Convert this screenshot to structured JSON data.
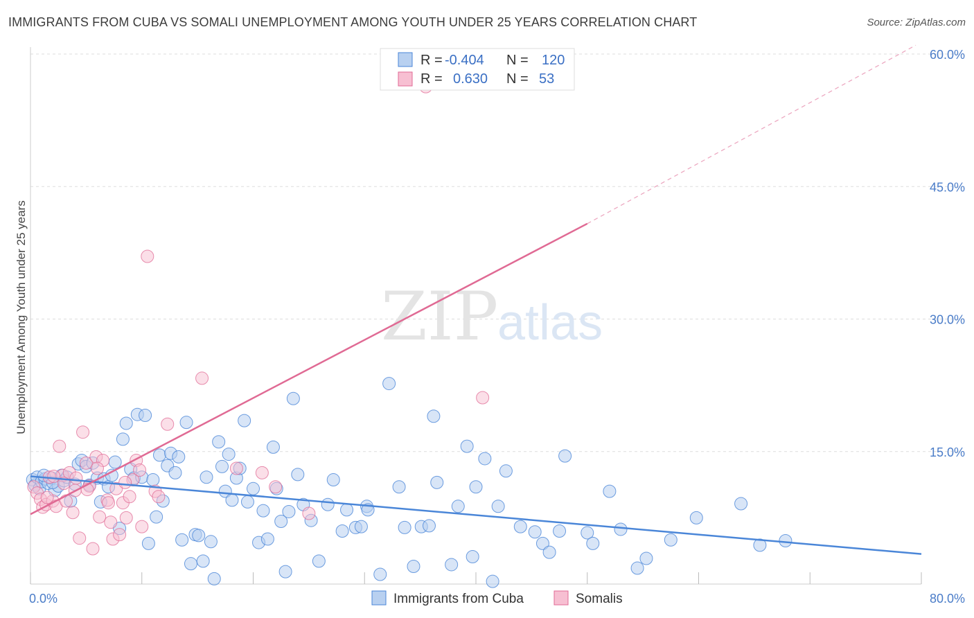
{
  "title": "IMMIGRANTS FROM CUBA VS SOMALI UNEMPLOYMENT AMONG YOUTH UNDER 25 YEARS CORRELATION CHART",
  "source": "Source: ZipAtlas.com",
  "watermark": {
    "zip": "ZIP",
    "atlas": "atlas"
  },
  "colors": {
    "cuba": "#4a86d8",
    "cuba_fill": "#b8d0f0",
    "somali": "#e06a94",
    "somali_fill": "#f7bfd2",
    "tick": "#4a7cc8",
    "grid": "#dddddd"
  },
  "stats": [
    {
      "r_label": "R =",
      "r": "-0.404",
      "n_label": "N =",
      "n": "120",
      "series": "cuba"
    },
    {
      "r_label": "R =",
      "r": "0.630",
      "n_label": "N =",
      "n": "53",
      "series": "somali"
    }
  ],
  "chart_data": {
    "type": "scatter",
    "ylabel": "Unemployment Among Youth under 25 years",
    "xlim": [
      0,
      80
    ],
    "ylim": [
      0,
      60
    ],
    "x_ticks": [
      "0.0%",
      "80.0%"
    ],
    "y_ticks": [
      {
        "value": 15,
        "label": "15.0%"
      },
      {
        "value": 30,
        "label": "30.0%"
      },
      {
        "value": 45,
        "label": "45.0%"
      },
      {
        "value": 60,
        "label": "60.0%"
      }
    ],
    "grid": true,
    "legend": [
      "Immigrants from Cuba",
      "Somalis"
    ],
    "series": [
      {
        "name": "Immigrants from Cuba",
        "trend": {
          "x": [
            0,
            80
          ],
          "y": [
            12.2,
            3.4
          ],
          "dashed_from": null
        },
        "points": [
          [
            0.2,
            11.8
          ],
          [
            0.4,
            11.2
          ],
          [
            0.6,
            12.1
          ],
          [
            0.8,
            10.8
          ],
          [
            1.0,
            11.6
          ],
          [
            1.3,
            11.9
          ],
          [
            1.6,
            11.4
          ],
          [
            1.9,
            12.0
          ],
          [
            2.2,
            10.6
          ],
          [
            2.5,
            11.1
          ],
          [
            2.8,
            12.3
          ],
          [
            3.0,
            11.7
          ],
          [
            3.3,
            12.1
          ],
          [
            3.6,
            9.4
          ],
          [
            4.0,
            11.3
          ],
          [
            4.3,
            13.6
          ],
          [
            4.6,
            14.0
          ],
          [
            5.0,
            13.3
          ],
          [
            5.3,
            11.2
          ],
          [
            5.6,
            13.7
          ],
          [
            6.0,
            12.0
          ],
          [
            6.3,
            9.3
          ],
          [
            6.6,
            11.9
          ],
          [
            7.0,
            11.0
          ],
          [
            7.3,
            12.3
          ],
          [
            7.6,
            13.8
          ],
          [
            8.0,
            6.3
          ],
          [
            8.3,
            16.4
          ],
          [
            8.6,
            18.2
          ],
          [
            9.0,
            13.0
          ],
          [
            9.3,
            12.0
          ],
          [
            9.6,
            19.2
          ],
          [
            10.0,
            12.1
          ],
          [
            10.3,
            19.1
          ],
          [
            10.6,
            4.6
          ],
          [
            11.0,
            11.8
          ],
          [
            11.3,
            7.6
          ],
          [
            11.6,
            14.6
          ],
          [
            11.9,
            9.4
          ],
          [
            12.3,
            13.4
          ],
          [
            12.6,
            14.8
          ],
          [
            13.0,
            12.6
          ],
          [
            13.3,
            14.4
          ],
          [
            13.6,
            5.0
          ],
          [
            14.0,
            18.3
          ],
          [
            14.4,
            2.3
          ],
          [
            14.8,
            5.6
          ],
          [
            15.1,
            5.5
          ],
          [
            15.5,
            2.6
          ],
          [
            15.8,
            12.1
          ],
          [
            16.2,
            4.8
          ],
          [
            16.5,
            0.6
          ],
          [
            16.9,
            16.1
          ],
          [
            17.2,
            13.3
          ],
          [
            17.5,
            10.5
          ],
          [
            17.8,
            14.7
          ],
          [
            18.1,
            9.5
          ],
          [
            18.5,
            12.0
          ],
          [
            18.8,
            13.1
          ],
          [
            19.2,
            18.5
          ],
          [
            19.5,
            9.3
          ],
          [
            20.0,
            10.8
          ],
          [
            20.5,
            4.7
          ],
          [
            20.9,
            8.3
          ],
          [
            21.3,
            5.1
          ],
          [
            21.8,
            15.5
          ],
          [
            22.1,
            10.8
          ],
          [
            22.5,
            7.1
          ],
          [
            22.9,
            1.4
          ],
          [
            23.2,
            8.2
          ],
          [
            23.6,
            21.0
          ],
          [
            24.0,
            12.4
          ],
          [
            24.5,
            9.0
          ],
          [
            25.2,
            7.2
          ],
          [
            25.9,
            2.6
          ],
          [
            26.7,
            9.0
          ],
          [
            27.2,
            11.8
          ],
          [
            28.0,
            6.0
          ],
          [
            28.4,
            8.4
          ],
          [
            29.2,
            6.4
          ],
          [
            29.7,
            6.5
          ],
          [
            30.2,
            8.8
          ],
          [
            30.3,
            8.4
          ],
          [
            31.4,
            1.1
          ],
          [
            32.2,
            22.7
          ],
          [
            33.1,
            11.0
          ],
          [
            33.6,
            6.4
          ],
          [
            34.4,
            2.0
          ],
          [
            35.1,
            6.5
          ],
          [
            35.8,
            6.6
          ],
          [
            36.2,
            19.0
          ],
          [
            36.5,
            11.5
          ],
          [
            37.8,
            2.2
          ],
          [
            38.4,
            8.8
          ],
          [
            39.2,
            15.6
          ],
          [
            39.7,
            3.1
          ],
          [
            40.0,
            11.0
          ],
          [
            40.8,
            14.2
          ],
          [
            41.5,
            0.3
          ],
          [
            42.0,
            8.8
          ],
          [
            42.7,
            12.8
          ],
          [
            44.0,
            6.5
          ],
          [
            45.3,
            5.9
          ],
          [
            46.0,
            4.6
          ],
          [
            46.6,
            3.6
          ],
          [
            47.5,
            6.0
          ],
          [
            48.0,
            14.5
          ],
          [
            50.0,
            5.8
          ],
          [
            50.5,
            4.6
          ],
          [
            52.0,
            10.5
          ],
          [
            53.0,
            6.2
          ],
          [
            54.5,
            1.8
          ],
          [
            55.3,
            2.9
          ],
          [
            57.5,
            5.0
          ],
          [
            59.8,
            7.5
          ],
          [
            63.8,
            9.1
          ],
          [
            65.5,
            4.4
          ],
          [
            67.8,
            4.9
          ],
          [
            1.2,
            12.3
          ],
          [
            2.0,
            11.5
          ]
        ]
      },
      {
        "name": "Somalis",
        "trend": {
          "x": [
            0,
            50
          ],
          "y": [
            7.9,
            40.8
          ],
          "dashed_to": [
            79.5,
            61.0
          ]
        },
        "points": [
          [
            0.3,
            11.0
          ],
          [
            0.6,
            10.3
          ],
          [
            0.9,
            9.6
          ],
          [
            1.1,
            8.7
          ],
          [
            1.4,
            9.0
          ],
          [
            1.7,
            12.1
          ],
          [
            2.0,
            9.4
          ],
          [
            2.3,
            8.8
          ],
          [
            2.6,
            15.6
          ],
          [
            2.9,
            12.3
          ],
          [
            3.2,
            9.4
          ],
          [
            3.5,
            12.6
          ],
          [
            3.8,
            8.1
          ],
          [
            4.1,
            12.0
          ],
          [
            4.4,
            5.2
          ],
          [
            4.7,
            17.2
          ],
          [
            5.0,
            13.7
          ],
          [
            5.3,
            11.1
          ],
          [
            5.6,
            4.0
          ],
          [
            5.9,
            14.4
          ],
          [
            6.2,
            7.6
          ],
          [
            6.5,
            14.0
          ],
          [
            6.9,
            9.5
          ],
          [
            7.2,
            7.0
          ],
          [
            7.4,
            5.1
          ],
          [
            7.7,
            10.8
          ],
          [
            8.0,
            5.6
          ],
          [
            8.3,
            9.2
          ],
          [
            8.6,
            7.5
          ],
          [
            8.9,
            9.9
          ],
          [
            9.2,
            11.8
          ],
          [
            9.5,
            14.0
          ],
          [
            10.0,
            6.5
          ],
          [
            10.5,
            37.1
          ],
          [
            11.2,
            10.5
          ],
          [
            12.3,
            18.1
          ],
          [
            15.4,
            23.3
          ],
          [
            18.5,
            13.1
          ],
          [
            20.8,
            12.6
          ],
          [
            22.0,
            11.0
          ],
          [
            25.0,
            8.0
          ],
          [
            35.5,
            56.3
          ],
          [
            40.6,
            21.1
          ],
          [
            1.5,
            9.8
          ],
          [
            2.1,
            12.2
          ],
          [
            3.0,
            11.4
          ],
          [
            4.0,
            10.6
          ],
          [
            5.1,
            10.7
          ],
          [
            6.0,
            13.1
          ],
          [
            7.0,
            9.2
          ],
          [
            8.5,
            11.5
          ],
          [
            9.8,
            12.9
          ],
          [
            11.5,
            9.9
          ]
        ]
      }
    ]
  }
}
